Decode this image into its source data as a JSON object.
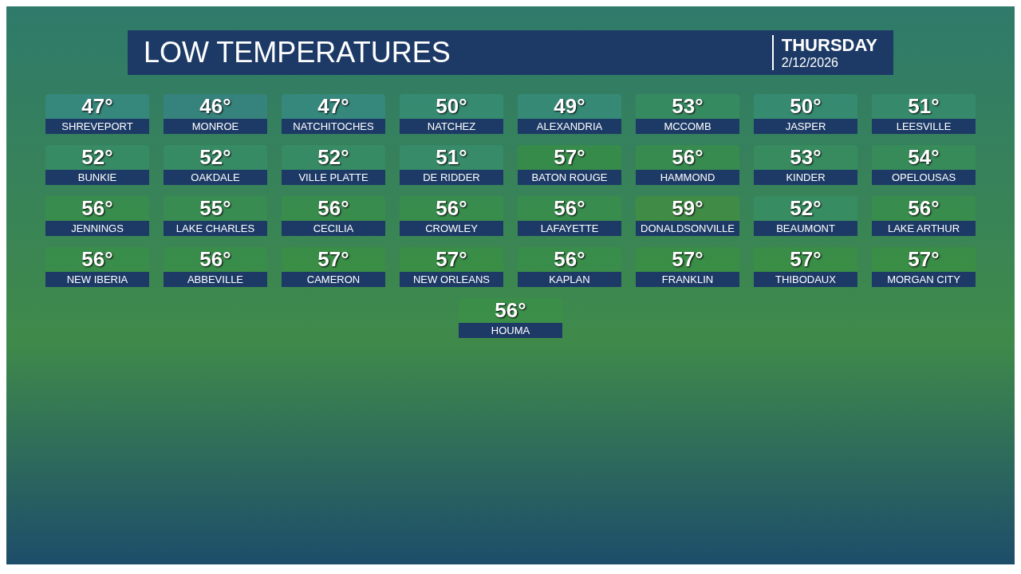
{
  "chart_data": {
    "type": "other",
    "title": "LOW TEMPERATURES",
    "subtitle": "THURSDAY",
    "annotations": [
      "2/12/2026"
    ],
    "categories": [
      "SHREVEPORT",
      "MONROE",
      "NATCHITOCHES",
      "NATCHEZ",
      "ALEXANDRIA",
      "MCCOMB",
      "JASPER",
      "LEESVILLE",
      "BUNKIE",
      "OAKDALE",
      "VILLE PLATTE",
      "DE RIDDER",
      "BATON ROUGE",
      "HAMMOND",
      "KINDER",
      "OPELOUSAS",
      "JENNINGS",
      "LAKE CHARLES",
      "CECILIA",
      "CROWLEY",
      "LAFAYETTE",
      "DONALDSONVILLE",
      "BEAUMONT",
      "LAKE ARTHUR",
      "NEW IBERIA",
      "ABBEVILLE",
      "CAMERON",
      "NEW ORLEANS",
      "KAPLAN",
      "FRANKLIN",
      "THIBODAUX",
      "MORGAN CITY",
      "HOUMA"
    ],
    "values": [
      47,
      46,
      47,
      50,
      49,
      53,
      50,
      51,
      52,
      52,
      52,
      51,
      57,
      56,
      53,
      54,
      56,
      55,
      56,
      56,
      56,
      59,
      52,
      56,
      56,
      56,
      57,
      57,
      56,
      57,
      57,
      57,
      56
    ],
    "value_labels": [
      "47°",
      "46°",
      "47°",
      "50°",
      "49°",
      "53°",
      "50°",
      "51°",
      "52°",
      "52°",
      "52°",
      "51°",
      "57°",
      "56°",
      "53°",
      "54°",
      "56°",
      "55°",
      "56°",
      "56°",
      "56°",
      "59°",
      "52°",
      "56°",
      "56°",
      "56°",
      "57°",
      "57°",
      "56°",
      "57°",
      "57°",
      "57°",
      "56°"
    ]
  }
}
